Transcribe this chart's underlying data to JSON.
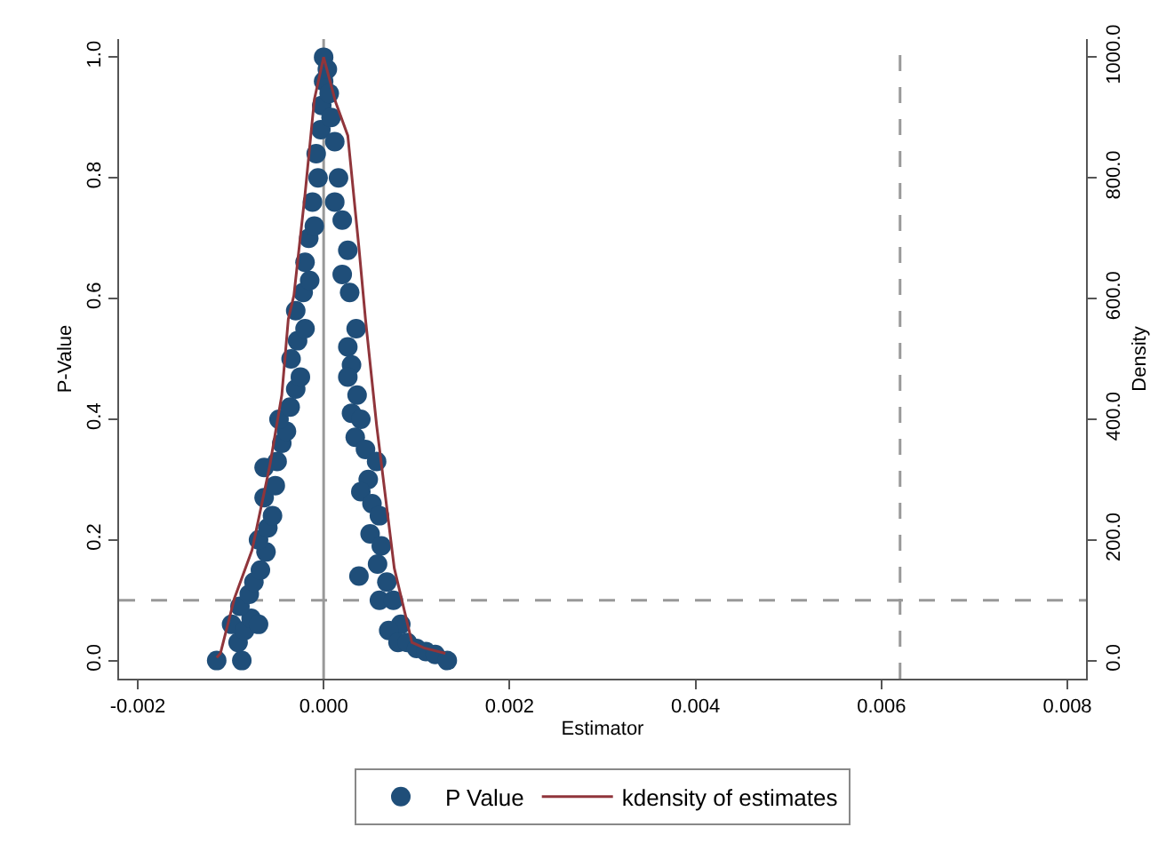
{
  "chart_data": {
    "type": "scatter",
    "xlabel": "Estimator",
    "ylabel": "P-Value",
    "y2label": "Density",
    "xlim": [
      -0.0022,
      0.0082
    ],
    "ylim": [
      -0.03,
      1.03
    ],
    "y2lim": [
      -30,
      1030
    ],
    "xticks": [
      {
        "value": -0.002,
        "label": "-0.002"
      },
      {
        "value": 0,
        "label": "0.000"
      },
      {
        "value": 0.002,
        "label": "0.002"
      },
      {
        "value": 0.004,
        "label": "0.004"
      },
      {
        "value": 0.006,
        "label": "0.006"
      },
      {
        "value": 0.008,
        "label": "0.008"
      }
    ],
    "yticks": [
      {
        "value": 0,
        "label": "0.0"
      },
      {
        "value": 0.2,
        "label": "0.2"
      },
      {
        "value": 0.4,
        "label": "0.4"
      },
      {
        "value": 0.6,
        "label": "0.6"
      },
      {
        "value": 0.8,
        "label": "0.8"
      },
      {
        "value": 1,
        "label": "1.0"
      }
    ],
    "y2ticks": [
      {
        "value": 0,
        "label": "0.0"
      },
      {
        "value": 200,
        "label": "200.0"
      },
      {
        "value": 400,
        "label": "400.0"
      },
      {
        "value": 600,
        "label": "600.0"
      },
      {
        "value": 800,
        "label": "800.0"
      },
      {
        "value": 1000,
        "label": "1000.0"
      }
    ],
    "grid": false,
    "legend": "bottom",
    "series": [
      {
        "name": "P Value",
        "marker": "circle",
        "color": "#1f4e79",
        "x": [
          -0.00115,
          -0.00088,
          -0.00092,
          -0.00099,
          -0.00085,
          -0.00078,
          -0.0007,
          -0.0009,
          -0.0008,
          -0.00075,
          -0.00068,
          -0.00062,
          -0.0007,
          -0.0006,
          -0.00055,
          -0.00064,
          -0.00052,
          -0.00064,
          -0.0005,
          -0.00045,
          -0.0004,
          -0.00048,
          -0.00036,
          -0.0003,
          -0.00025,
          -0.00035,
          -0.00028,
          -0.0002,
          -0.0003,
          -0.00022,
          -0.00015,
          -0.0002,
          -0.00016,
          -0.0001,
          -0.00012,
          -6e-05,
          -8e-05,
          -3e-05,
          -2e-05,
          0.0,
          0.0,
          4e-05,
          6e-05,
          8e-05,
          0.00012,
          0.00016,
          0.00012,
          0.0002,
          0.00026,
          0.0002,
          0.00028,
          0.00035,
          0.00026,
          0.0003,
          0.00026,
          0.00036,
          0.0003,
          0.0004,
          0.00034,
          0.00045,
          0.00057,
          0.00048,
          0.0004,
          0.00052,
          0.0006,
          0.0005,
          0.00062,
          0.00038,
          0.00058,
          0.00068,
          0.0006,
          0.00075,
          0.00083,
          0.0007,
          0.0008,
          0.0009,
          0.001,
          0.0011,
          0.0012,
          0.00133
        ],
        "values": [
          0.0,
          0.0,
          0.03,
          0.06,
          0.05,
          0.07,
          0.06,
          0.09,
          0.11,
          0.13,
          0.15,
          0.18,
          0.2,
          0.22,
          0.24,
          0.27,
          0.29,
          0.32,
          0.33,
          0.36,
          0.38,
          0.4,
          0.42,
          0.45,
          0.47,
          0.5,
          0.53,
          0.55,
          0.58,
          0.61,
          0.63,
          0.66,
          0.7,
          0.72,
          0.76,
          0.8,
          0.84,
          0.88,
          0.92,
          0.96,
          1.0,
          0.98,
          0.94,
          0.9,
          0.86,
          0.8,
          0.76,
          0.73,
          0.68,
          0.64,
          0.61,
          0.55,
          0.52,
          0.49,
          0.47,
          0.44,
          0.41,
          0.4,
          0.37,
          0.35,
          0.33,
          0.3,
          0.28,
          0.26,
          0.24,
          0.21,
          0.19,
          0.14,
          0.16,
          0.13,
          0.1,
          0.1,
          0.06,
          0.05,
          0.03,
          0.03,
          0.02,
          0.015,
          0.01,
          0.0
        ]
      },
      {
        "name": "kdensity of estimates",
        "type": "line",
        "axis": "y2",
        "marker": "none",
        "line_style": "solid",
        "color": "#90353b",
        "x": [
          -0.00115,
          -0.00111,
          -0.00096,
          -0.00077,
          -0.00058,
          -0.00045,
          -0.00038,
          -0.00032,
          -0.0002,
          -0.0001,
          0.0,
          0.00013,
          0.00026,
          0.00038,
          0.00045,
          0.00057,
          0.00076,
          0.00095,
          0.00108,
          0.00131
        ],
        "values": [
          5,
          12,
          103,
          183,
          322,
          440,
          566,
          605,
          773,
          930,
          1000,
          925,
          870,
          684,
          566,
          390,
          153,
          30,
          21,
          12
        ]
      }
    ],
    "ref_lines": [
      {
        "axis": "x",
        "value": 0,
        "color": "#999999",
        "line_style": "solid"
      },
      {
        "axis": "x",
        "value": 0.0062,
        "color": "#999999",
        "line_style": "dashed"
      },
      {
        "axis": "y",
        "value": 0.1,
        "color": "#999999",
        "line_style": "dashed"
      }
    ]
  }
}
